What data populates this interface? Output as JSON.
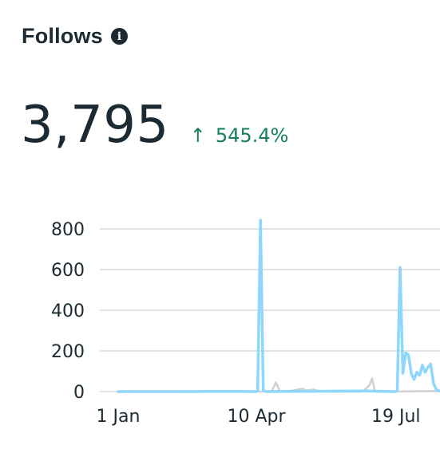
{
  "header": {
    "title": "Follows",
    "info_icon": "info-icon"
  },
  "metric": {
    "value": "3,795",
    "change": "545.4%",
    "change_icon": "arrow-up-icon",
    "change_color": "#15805a"
  },
  "colors": {
    "text": "#1c2b33",
    "primary_series": "#8ed6fb",
    "comparison_series": "#d0d0d0",
    "grid": "#d9d9d9"
  },
  "chart_data": {
    "type": "line",
    "x_tick_labels": [
      "1 Jan",
      "10 Apr",
      "19 Jul"
    ],
    "y_tick_labels": [
      "0",
      "200",
      "400",
      "600",
      "800"
    ],
    "ylim": [
      0,
      850
    ],
    "grid": true,
    "series": [
      {
        "role": "current",
        "color": "#8ed6fb",
        "points": [
          [
            0,
            0
          ],
          [
            40,
            0
          ],
          [
            80,
            1
          ],
          [
            99,
            0
          ],
          [
            100,
            3
          ],
          [
            102,
            843
          ],
          [
            104,
            5
          ],
          [
            106,
            0
          ],
          [
            150,
            2
          ],
          [
            180,
            3
          ],
          [
            195,
            0
          ],
          [
            199,
            0
          ],
          [
            200,
            5
          ],
          [
            202,
            610
          ],
          [
            204,
            90
          ],
          [
            206,
            190
          ],
          [
            208,
            180
          ],
          [
            210,
            90
          ],
          [
            212,
            60
          ],
          [
            214,
            95
          ],
          [
            216,
            80
          ],
          [
            218,
            130
          ],
          [
            220,
            95
          ],
          [
            222,
            120
          ],
          [
            224,
            135
          ],
          [
            226,
            40
          ],
          [
            228,
            10
          ],
          [
            230,
            3
          ],
          [
            245,
            2
          ],
          [
            255,
            0
          ]
        ]
      },
      {
        "role": "comparison",
        "color": "#d0d0d0",
        "points": [
          [
            0,
            0
          ],
          [
            100,
            0
          ],
          [
            110,
            0
          ],
          [
            113,
            45
          ],
          [
            116,
            0
          ],
          [
            125,
            5
          ],
          [
            132,
            15
          ],
          [
            135,
            5
          ],
          [
            140,
            10
          ],
          [
            145,
            0
          ],
          [
            175,
            0
          ],
          [
            180,
            30
          ],
          [
            182,
            65
          ],
          [
            184,
            0
          ],
          [
            200,
            0
          ],
          [
            225,
            3
          ],
          [
            255,
            0
          ]
        ]
      }
    ]
  }
}
